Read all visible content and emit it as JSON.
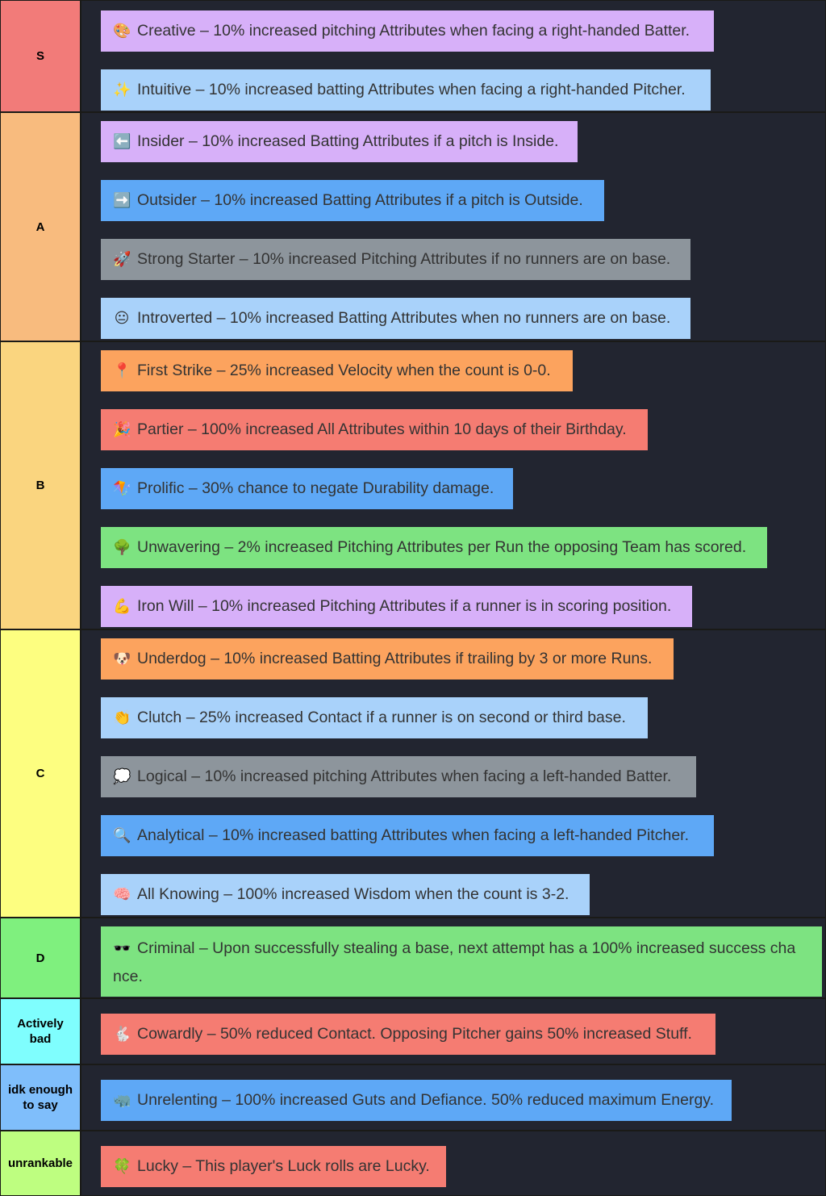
{
  "colors": {
    "purple": "#d7b0f9",
    "lightblue": "#a9d2fa",
    "blue": "#5ea8f6",
    "gray": "#8d959c",
    "orange": "#fca35e",
    "red": "#f57c72",
    "green": "#7de381"
  },
  "tiers": [
    {
      "label": "S",
      "color": "#f27b79",
      "items": [
        {
          "icon": "palette-icon",
          "emoji": "🎨",
          "text": "Creative – 10% increased pitching Attributes when facing a right-handed Batter.",
          "color": "purple"
        },
        {
          "icon": "sparkles-icon",
          "emoji": "✨",
          "text": "Intuitive – 10% increased batting Attributes when facing a right-handed Pitcher.",
          "color": "lightblue"
        }
      ]
    },
    {
      "label": "A",
      "color": "#f8bb7e",
      "items": [
        {
          "icon": "left-arrow-icon",
          "emoji": "⬅️",
          "text": "Insider – 10% increased Batting Attributes if a pitch is Inside.",
          "color": "purple"
        },
        {
          "icon": "right-arrow-icon",
          "emoji": "➡️",
          "text": "Outsider – 10% increased Batting Attributes if a pitch is Outside.",
          "color": "blue"
        },
        {
          "icon": "rocket-icon",
          "emoji": "🚀",
          "text": "Strong Starter – 10% increased Pitching Attributes if no runners are on base.",
          "color": "gray"
        },
        {
          "icon": "neutral-face-icon",
          "emoji": "😐",
          "text": "Introverted – 10% increased Batting Attributes when no runners are on base.",
          "color": "lightblue"
        }
      ]
    },
    {
      "label": "B",
      "color": "#fad57f",
      "items": [
        {
          "icon": "pin-icon",
          "emoji": "📍",
          "text": "First Strike – 25% increased Velocity when the count is 0-0.",
          "color": "orange"
        },
        {
          "icon": "party-popper-icon",
          "emoji": "🎉",
          "text": "Partier – 100% increased All Attributes within 10 days of their Birthday.",
          "color": "red"
        },
        {
          "icon": "kite-icon",
          "emoji": "🪁",
          "text": "Prolific – 30% chance to negate Durability damage.",
          "color": "blue"
        },
        {
          "icon": "tree-icon",
          "emoji": "🌳",
          "text": "Unwavering – 2% increased Pitching Attributes per Run the opposing Team has scored.",
          "color": "green"
        },
        {
          "icon": "flexed-arm-icon",
          "emoji": "💪",
          "text": "Iron Will – 10% increased Pitching Attributes if a runner is in scoring position.",
          "color": "purple"
        }
      ]
    },
    {
      "label": "C",
      "color": "#fdfe80",
      "items": [
        {
          "icon": "dog-face-icon",
          "emoji": "🐶",
          "text": "Underdog – 10% increased Batting Attributes if trailing by 3 or more Runs.",
          "color": "orange"
        },
        {
          "icon": "clapping-hands-icon",
          "emoji": "👏",
          "text": "Clutch – 25% increased Contact if a runner is on second or third base.",
          "color": "lightblue"
        },
        {
          "icon": "thought-bubble-icon",
          "emoji": "💭",
          "text": "Logical – 10% increased pitching Attributes when facing a left-handed Batter.",
          "color": "gray"
        },
        {
          "icon": "magnifier-icon",
          "emoji": "🔍",
          "text": "Analytical – 10% increased batting Attributes when facing a left-handed Pitcher.",
          "color": "blue"
        },
        {
          "icon": "brain-icon",
          "emoji": "🧠",
          "text": "All Knowing – 100% increased Wisdom when the count is 3-2.",
          "color": "lightblue"
        }
      ]
    },
    {
      "label": "D",
      "color": "#7ff07e",
      "items": [
        {
          "icon": "sunglasses-icon",
          "emoji": "🕶️",
          "text": "Criminal – Upon successfully stealing a base, next attempt has a 100% increased success cha nce.",
          "color": "green"
        }
      ]
    },
    {
      "label": "Actively bad",
      "color": "#7ffefe",
      "items": [
        {
          "icon": "rabbit-icon",
          "emoji": "🐇",
          "text": "Cowardly – 50% reduced Contact. Opposing Pitcher gains 50% increased Stuff.",
          "color": "red"
        }
      ]
    },
    {
      "label": "idk enough to say",
      "color": "#7fbefb",
      "items": [
        {
          "icon": "rhino-icon",
          "emoji": "🦏",
          "text": "Unrelenting – 100% increased Guts and Defiance. 50% reduced maximum Energy.",
          "color": "blue"
        }
      ]
    },
    {
      "label": "unrankable",
      "color": "#befe80",
      "items": [
        {
          "icon": "clover-icon",
          "emoji": "🍀",
          "text": "Lucky – This player's Luck rolls are Lucky.",
          "color": "red"
        }
      ]
    }
  ]
}
